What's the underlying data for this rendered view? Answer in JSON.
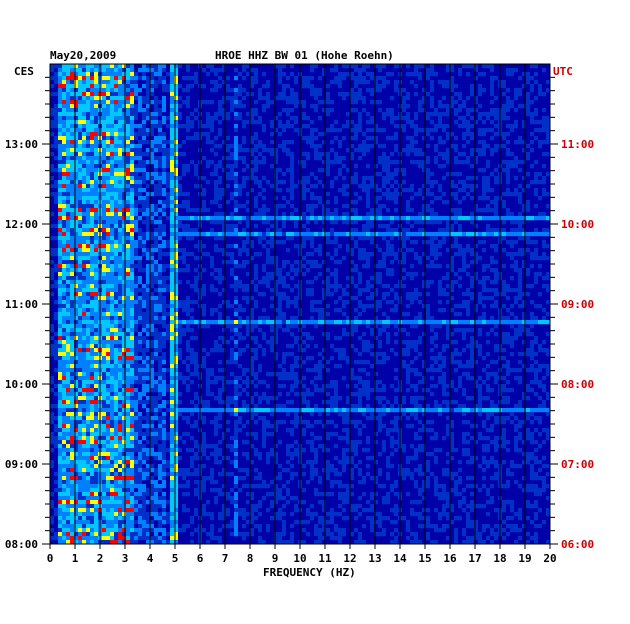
{
  "chart_data": {
    "type": "heatmap",
    "title": "HROE HHZ BW 01 (Hohe Roehn)",
    "date": "May20,2009",
    "xlabel": "FREQUENCY (HZ)",
    "xlim": [
      0,
      20
    ],
    "x_ticks": [
      "0",
      "1",
      "2",
      "3",
      "4",
      "5",
      "6",
      "7",
      "8",
      "9",
      "10",
      "11",
      "12",
      "13",
      "14",
      "15",
      "16",
      "17",
      "18",
      "19",
      "20"
    ],
    "left_axis": {
      "label": "CES",
      "ticks": [
        {
          "label": "13:00",
          "hours_from_bottom": 5
        },
        {
          "label": "12:00",
          "hours_from_bottom": 4
        },
        {
          "label": "11:00",
          "hours_from_bottom": 3
        },
        {
          "label": "10:00",
          "hours_from_bottom": 2
        },
        {
          "label": "09:00",
          "hours_from_bottom": 1
        },
        {
          "label": "08:00",
          "hours_from_bottom": 0
        }
      ]
    },
    "right_axis": {
      "label": "UTC",
      "ticks": [
        {
          "label": "11:00",
          "hours_from_bottom": 5
        },
        {
          "label": "10:00",
          "hours_from_bottom": 4
        },
        {
          "label": "09:00",
          "hours_from_bottom": 3
        },
        {
          "label": "08:00",
          "hours_from_bottom": 2
        },
        {
          "label": "07:00",
          "hours_from_bottom": 1
        },
        {
          "label": "06:00",
          "hours_from_bottom": 0
        }
      ]
    },
    "hours_span": 6,
    "colors": {
      "background": "#0000a8",
      "low": "#0030c8",
      "mid": "#00c8ff",
      "high": "#ffff00",
      "peak": "#ff0000",
      "axis_text_left": "#000000",
      "axis_text_right": "#cc0000"
    },
    "grid": true,
    "bands": [
      {
        "freq_range": [
          0.3,
          3.2
        ],
        "intensity": "high"
      },
      {
        "freq_range": [
          4.8,
          5.0
        ],
        "intensity": "mid"
      },
      {
        "freq_range": [
          7.3,
          7.4
        ],
        "intensity": "mid"
      }
    ]
  }
}
